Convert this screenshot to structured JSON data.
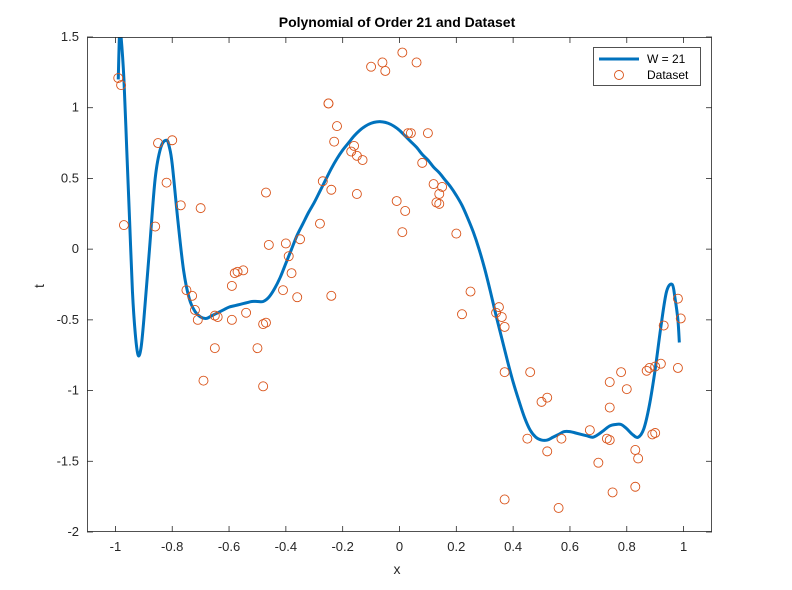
{
  "chart_data": {
    "type": "line",
    "title": "Polynomial of Order 21 and Dataset",
    "xlabel": "x",
    "ylabel": "t",
    "xlim": [
      -1.1,
      1.1
    ],
    "ylim": [
      -2,
      1.5
    ],
    "xticks": [
      -1,
      -0.8,
      -0.6,
      -0.4,
      -0.2,
      0,
      0.2,
      0.4,
      0.6,
      0.8,
      1
    ],
    "xtick_labels": [
      "-1",
      "-0.8",
      "-0.6",
      "-0.4",
      "-0.2",
      "0",
      "0.2",
      "0.4",
      "0.6",
      "0.8",
      "1"
    ],
    "yticks": [
      -2,
      -1.5,
      -1,
      -0.5,
      0,
      0.5,
      1,
      1.5
    ],
    "ytick_labels": [
      "-2",
      "-1.5",
      "-1",
      "-0.5",
      "0",
      "0.5",
      "1",
      "1.5"
    ],
    "grid": false,
    "legend_position": "top-right",
    "series": [
      {
        "name": "W = 21",
        "kind": "line",
        "color": "#0072BD",
        "x": [
          -0.99,
          -0.985,
          -0.98,
          -0.97,
          -0.96,
          -0.95,
          -0.94,
          -0.93,
          -0.92,
          -0.91,
          -0.9,
          -0.88,
          -0.86,
          -0.84,
          -0.82,
          -0.81,
          -0.8,
          -0.78,
          -0.76,
          -0.74,
          -0.72,
          -0.7,
          -0.68,
          -0.66,
          -0.64,
          -0.62,
          -0.6,
          -0.58,
          -0.56,
          -0.54,
          -0.52,
          -0.5,
          -0.48,
          -0.46,
          -0.44,
          -0.42,
          -0.4,
          -0.38,
          -0.36,
          -0.34,
          -0.32,
          -0.3,
          -0.28,
          -0.26,
          -0.24,
          -0.22,
          -0.2,
          -0.18,
          -0.16,
          -0.14,
          -0.12,
          -0.1,
          -0.08,
          -0.06,
          -0.04,
          -0.02,
          0,
          0.02,
          0.04,
          0.06,
          0.08,
          0.1,
          0.12,
          0.14,
          0.16,
          0.18,
          0.2,
          0.22,
          0.24,
          0.26,
          0.28,
          0.3,
          0.32,
          0.34,
          0.36,
          0.38,
          0.4,
          0.42,
          0.44,
          0.46,
          0.48,
          0.5,
          0.52,
          0.54,
          0.56,
          0.58,
          0.6,
          0.62,
          0.64,
          0.66,
          0.68,
          0.7,
          0.72,
          0.74,
          0.76,
          0.78,
          0.8,
          0.82,
          0.84,
          0.86,
          0.88,
          0.9,
          0.92,
          0.94,
          0.96,
          0.97,
          0.98,
          0.985
        ],
        "y": [
          1.2,
          1.55,
          1.5,
          1.2,
          0.7,
          0.2,
          -0.3,
          -0.6,
          -0.75,
          -0.7,
          -0.5,
          0.0,
          0.5,
          0.72,
          0.77,
          0.72,
          0.6,
          0.2,
          -0.15,
          -0.35,
          -0.44,
          -0.48,
          -0.49,
          -0.47,
          -0.45,
          -0.43,
          -0.41,
          -0.4,
          -0.39,
          -0.38,
          -0.37,
          -0.37,
          -0.37,
          -0.34,
          -0.28,
          -0.2,
          -0.1,
          0.0,
          0.1,
          0.18,
          0.26,
          0.33,
          0.41,
          0.49,
          0.57,
          0.64,
          0.7,
          0.75,
          0.8,
          0.84,
          0.87,
          0.89,
          0.9,
          0.9,
          0.89,
          0.87,
          0.84,
          0.8,
          0.76,
          0.72,
          0.67,
          0.63,
          0.58,
          0.54,
          0.49,
          0.44,
          0.38,
          0.31,
          0.22,
          0.12,
          0.0,
          -0.14,
          -0.3,
          -0.47,
          -0.63,
          -0.79,
          -0.94,
          -1.07,
          -1.19,
          -1.28,
          -1.33,
          -1.35,
          -1.35,
          -1.33,
          -1.31,
          -1.29,
          -1.29,
          -1.3,
          -1.31,
          -1.32,
          -1.33,
          -1.31,
          -1.28,
          -1.25,
          -1.24,
          -1.24,
          -1.27,
          -1.31,
          -1.33,
          -1.27,
          -1.1,
          -0.85,
          -0.55,
          -0.3,
          -0.25,
          -0.35,
          -0.5,
          -0.66
        ]
      },
      {
        "name": "Dataset",
        "kind": "scatter",
        "color": "#D95319",
        "x": [
          -0.99,
          -0.98,
          -0.97,
          -0.86,
          -0.85,
          -0.82,
          -0.8,
          -0.77,
          -0.75,
          -0.73,
          -0.72,
          -0.71,
          -0.7,
          -0.69,
          -0.65,
          -0.65,
          -0.64,
          -0.59,
          -0.59,
          -0.58,
          -0.57,
          -0.55,
          -0.54,
          -0.5,
          -0.48,
          -0.48,
          -0.47,
          -0.47,
          -0.46,
          -0.41,
          -0.4,
          -0.39,
          -0.38,
          -0.35,
          -0.36,
          -0.28,
          -0.27,
          -0.25,
          -0.25,
          -0.24,
          -0.24,
          -0.23,
          -0.22,
          -0.17,
          -0.16,
          -0.15,
          -0.15,
          -0.13,
          -0.1,
          -0.06,
          -0.05,
          -0.01,
          0.01,
          0.01,
          0.02,
          0.03,
          0.04,
          0.06,
          0.08,
          0.1,
          0.12,
          0.13,
          0.14,
          0.14,
          0.15,
          0.2,
          0.22,
          0.25,
          0.34,
          0.35,
          0.36,
          0.37,
          0.37,
          0.37,
          0.45,
          0.46,
          0.5,
          0.52,
          0.52,
          0.56,
          0.57,
          0.67,
          0.7,
          0.73,
          0.74,
          0.74,
          0.74,
          0.75,
          0.78,
          0.8,
          0.83,
          0.83,
          0.84,
          0.87,
          0.88,
          0.89,
          0.9,
          0.9,
          0.92,
          0.93,
          0.98,
          0.98,
          0.99
        ],
        "y": [
          1.21,
          1.16,
          0.17,
          0.16,
          0.75,
          0.47,
          0.77,
          0.31,
          -0.29,
          -0.33,
          -0.43,
          -0.5,
          0.29,
          -0.93,
          -0.47,
          -0.7,
          -0.48,
          -0.26,
          -0.5,
          -0.17,
          -0.16,
          -0.15,
          -0.45,
          -0.7,
          -0.97,
          -0.53,
          -0.52,
          0.4,
          0.03,
          -0.29,
          0.04,
          -0.05,
          -0.17,
          0.07,
          -0.34,
          0.18,
          0.48,
          1.03,
          1.03,
          0.42,
          -0.33,
          0.76,
          0.87,
          0.69,
          0.73,
          0.39,
          0.66,
          0.63,
          1.29,
          1.32,
          1.26,
          0.34,
          0.12,
          1.39,
          0.27,
          0.82,
          0.82,
          1.32,
          0.61,
          0.82,
          0.46,
          0.33,
          0.32,
          0.39,
          0.44,
          0.11,
          -0.46,
          -0.3,
          -0.45,
          -0.41,
          -0.48,
          -0.55,
          -0.87,
          -1.77,
          -1.34,
          -0.87,
          -1.08,
          -1.43,
          -1.05,
          -1.83,
          -1.34,
          -1.28,
          -1.51,
          -1.34,
          -0.94,
          -1.12,
          -1.35,
          -1.72,
          -0.87,
          -0.99,
          -1.42,
          -1.68,
          -1.48,
          -0.86,
          -0.84,
          -1.31,
          -1.3,
          -0.83,
          -0.81,
          -0.54,
          -0.35,
          -0.84,
          -0.49
        ]
      }
    ]
  }
}
